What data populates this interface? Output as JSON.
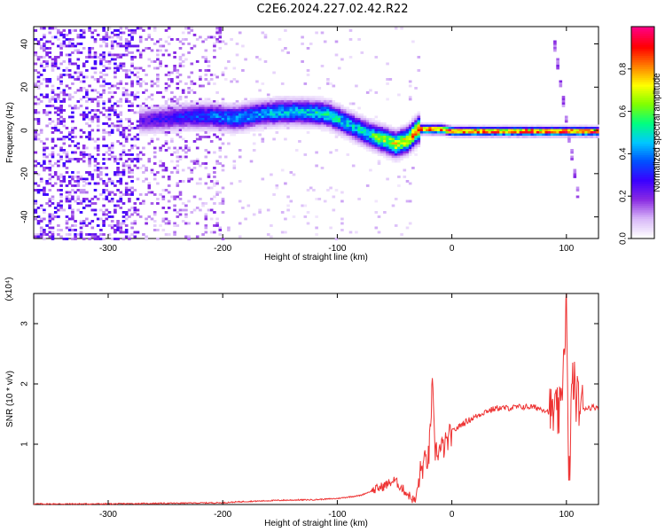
{
  "title": "C2E6.2024.227.02.42.R22",
  "chart_data": [
    {
      "type": "heatmap",
      "title": "C2E6.2024.227.02.42.R22",
      "xlabel": "Height of straight line (km)",
      "ylabel": "Frequency (Hz)",
      "xlim": [
        -365,
        128
      ],
      "ylim": [
        -50,
        48
      ],
      "xticks": [
        -300,
        -200,
        -100,
        0,
        100
      ],
      "yticks": [
        -40,
        -20,
        0,
        20,
        40
      ],
      "colorbar": {
        "label": "Normalized spectral amplitude",
        "range": [
          0,
          1
        ],
        "ticks": [
          0.0,
          0.2,
          0.4,
          0.6,
          0.8
        ],
        "colors": [
          "#ffffff",
          "#d8b8f8",
          "#8a2be2",
          "#3a00ff",
          "#0050ff",
          "#00c8ff",
          "#00ff80",
          "#80ff00",
          "#ffff00",
          "#ff8000",
          "#ff0000",
          "#ff0080"
        ]
      },
      "ridge": {
        "x": [
          -270,
          -250,
          -230,
          -210,
          -190,
          -170,
          -150,
          -130,
          -110,
          -90,
          -75,
          -60,
          -50,
          -40,
          -30,
          -20,
          -10,
          0,
          50,
          100,
          128
        ],
        "freq": [
          5,
          6,
          7,
          7,
          6,
          8,
          9,
          9,
          8,
          3,
          -1,
          -4,
          -6,
          -4,
          1,
          1,
          1,
          0,
          0,
          0,
          0
        ],
        "amplitude": [
          0.25,
          0.3,
          0.35,
          0.4,
          0.45,
          0.45,
          0.5,
          0.5,
          0.55,
          0.5,
          0.55,
          0.7,
          0.75,
          0.8,
          0.95,
          0.95,
          0.95,
          0.95,
          0.95,
          0.95,
          0.95
        ]
      }
    },
    {
      "type": "line",
      "xlabel": "Height of straight line (km)",
      "ylabel": "SNR (10 * v/v)",
      "yscale_label": "(x10⁴)",
      "xlim": [
        -365,
        128
      ],
      "ylim": [
        0,
        3.5
      ],
      "xticks": [
        -300,
        -200,
        -100,
        0,
        100
      ],
      "yticks": [
        1,
        2,
        3
      ],
      "color": "#ee3333",
      "series": [
        {
          "x": [
            -365,
            -300,
            -250,
            -200,
            -180,
            -150,
            -120,
            -100,
            -80,
            -60,
            -50,
            -40,
            -32,
            -28,
            -25,
            -20,
            -17,
            -15,
            -10,
            -5,
            0,
            10,
            20,
            30,
            40,
            50,
            60,
            70,
            80,
            90,
            95,
            100,
            102,
            105,
            110,
            115,
            128
          ],
          "y": [
            0.01,
            0.01,
            0.02,
            0.03,
            0.05,
            0.07,
            0.08,
            0.1,
            0.15,
            0.3,
            0.4,
            0.2,
            0.05,
            0.5,
            0.65,
            0.8,
            2.0,
            0.9,
            0.9,
            1.0,
            1.2,
            1.35,
            1.45,
            1.55,
            1.6,
            1.6,
            1.62,
            1.62,
            1.58,
            1.5,
            1.5,
            3.4,
            0.1,
            2.1,
            1.7,
            1.6,
            1.62
          ]
        }
      ]
    }
  ]
}
